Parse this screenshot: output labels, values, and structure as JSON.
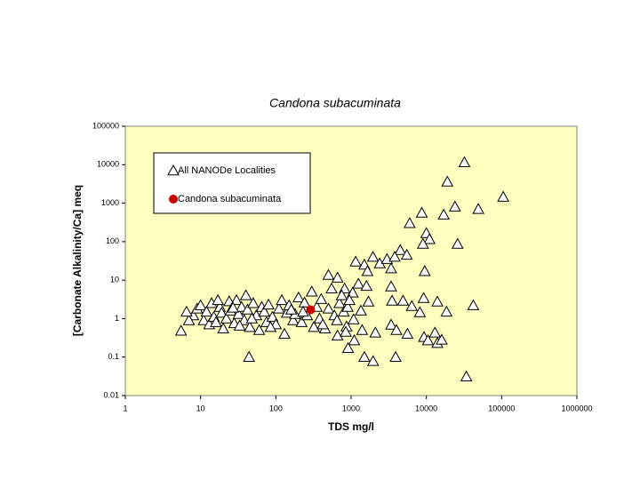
{
  "chart_data": {
    "type": "scatter",
    "title": "Candona subacuminata",
    "x_label": "TDS  mg/l",
    "y_label": "[Carbonate Alkalinity/Ca] meq",
    "x_log": true,
    "y_log": true,
    "xlim": [
      1,
      1000000
    ],
    "ylim": [
      0.01,
      100000
    ],
    "xticks": [
      1,
      10,
      100,
      1000,
      10000,
      100000,
      1000000
    ],
    "yticks": [
      0.01,
      0.1,
      1,
      10,
      100,
      1000,
      10000,
      100000
    ],
    "series": [
      {
        "name": "All NANODe Localities",
        "color": "#000000",
        "marker": "triangle",
        "x": [
          32000,
          19000,
          105000,
          49000,
          24000,
          17000,
          8700,
          6000,
          10000,
          11000,
          26000,
          9000,
          3400,
          9500,
          3400,
          9200,
          3500,
          4900,
          6400,
          14000,
          18500,
          42000,
          3400,
          4000,
          5600,
          9300,
          10500,
          14000,
          16000,
          13000,
          8200,
          34000,
          3900,
          1960,
          1500,
          1100,
          44,
          5.5,
          1150,
          1500,
          1950,
          2400,
          1650,
          1250,
          1600,
          1050,
          660,
          500,
          820,
          1700,
          1350,
          1080,
          870,
          660,
          910,
          1400,
          2100,
          3000,
          4500,
          5500,
          3800,
          8,
          9,
          10,
          11,
          12,
          13,
          14,
          15,
          16,
          18,
          19,
          20,
          22,
          24,
          25,
          28,
          30,
          32,
          35,
          38,
          40,
          42,
          45,
          50,
          55,
          60,
          65,
          70,
          75,
          80,
          90,
          100,
          110,
          120,
          130,
          140,
          150,
          170,
          180,
          200,
          220,
          240,
          260,
          300,
          320,
          350,
          380,
          400,
          450,
          500,
          550,
          600,
          650,
          700,
          750,
          800,
          850,
          900,
          950,
          7,
          6.5,
          17,
          27,
          33,
          48,
          85,
          160,
          230,
          420
        ],
        "values": [
          11500,
          3600,
          1450,
          700,
          810,
          500,
          560,
          300,
          165,
          115,
          87,
          87,
          20,
          17,
          6.8,
          3.4,
          2.9,
          2.9,
          2.1,
          2.75,
          1.5,
          2.2,
          0.69,
          0.5,
          0.4,
          0.33,
          0.27,
          0.23,
          0.28,
          0.43,
          1.45,
          0.031,
          0.1,
          0.078,
          0.1,
          0.27,
          0.1,
          0.48,
          30,
          25,
          40,
          27,
          17,
          8,
          7,
          4.7,
          11.5,
          13.5,
          6,
          2.75,
          1.6,
          0.95,
          0.62,
          0.36,
          0.17,
          0.5,
          0.43,
          35,
          60,
          45,
          40,
          1.2,
          1.8,
          2.2,
          0.9,
          1.5,
          0.7,
          2.5,
          1.1,
          0.8,
          2.0,
          1.4,
          0.55,
          1.0,
          2.8,
          1.6,
          0.75,
          3.0,
          1.3,
          2.0,
          0.9,
          4.0,
          1.7,
          0.6,
          2.5,
          1.2,
          0.5,
          2.0,
          1.5,
          0.8,
          2.3,
          1.1,
          0.7,
          1.8,
          3.0,
          0.4,
          1.4,
          2.2,
          0.9,
          1.3,
          3.5,
          0.8,
          2.6,
          1.2,
          5.0,
          0.6,
          2.0,
          1.0,
          3.2,
          0.55,
          1.8,
          6.0,
          1.2,
          0.9,
          2.5,
          4.0,
          1.5,
          0.45,
          2.0,
          3.0,
          0.9,
          1.5,
          3.0,
          1.9,
          0.65,
          1.0,
          0.6,
          1.7,
          1.5,
          0.7
        ]
      },
      {
        "name": "Candona subacuminata",
        "color": "#cc0000",
        "marker": "circle",
        "x": [
          290
        ],
        "values": [
          1.7
        ]
      }
    ]
  }
}
